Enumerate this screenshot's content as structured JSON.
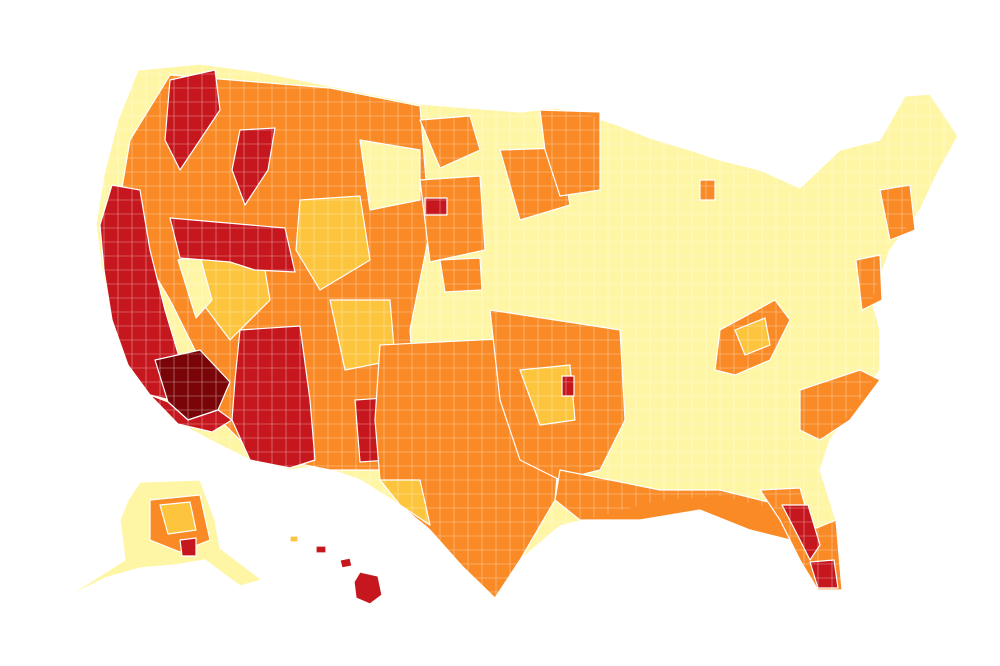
{
  "map": {
    "type": "choropleth",
    "subject": "us-counties",
    "title": "",
    "legend": [],
    "palette": {
      "level_1": "#fef6a5",
      "level_2": "#fdc53d",
      "level_3": "#f98a25",
      "level_4": "#c6161e",
      "level_5": "#7a0508",
      "background": "#ffffff",
      "border": "#ffffff"
    }
  }
}
